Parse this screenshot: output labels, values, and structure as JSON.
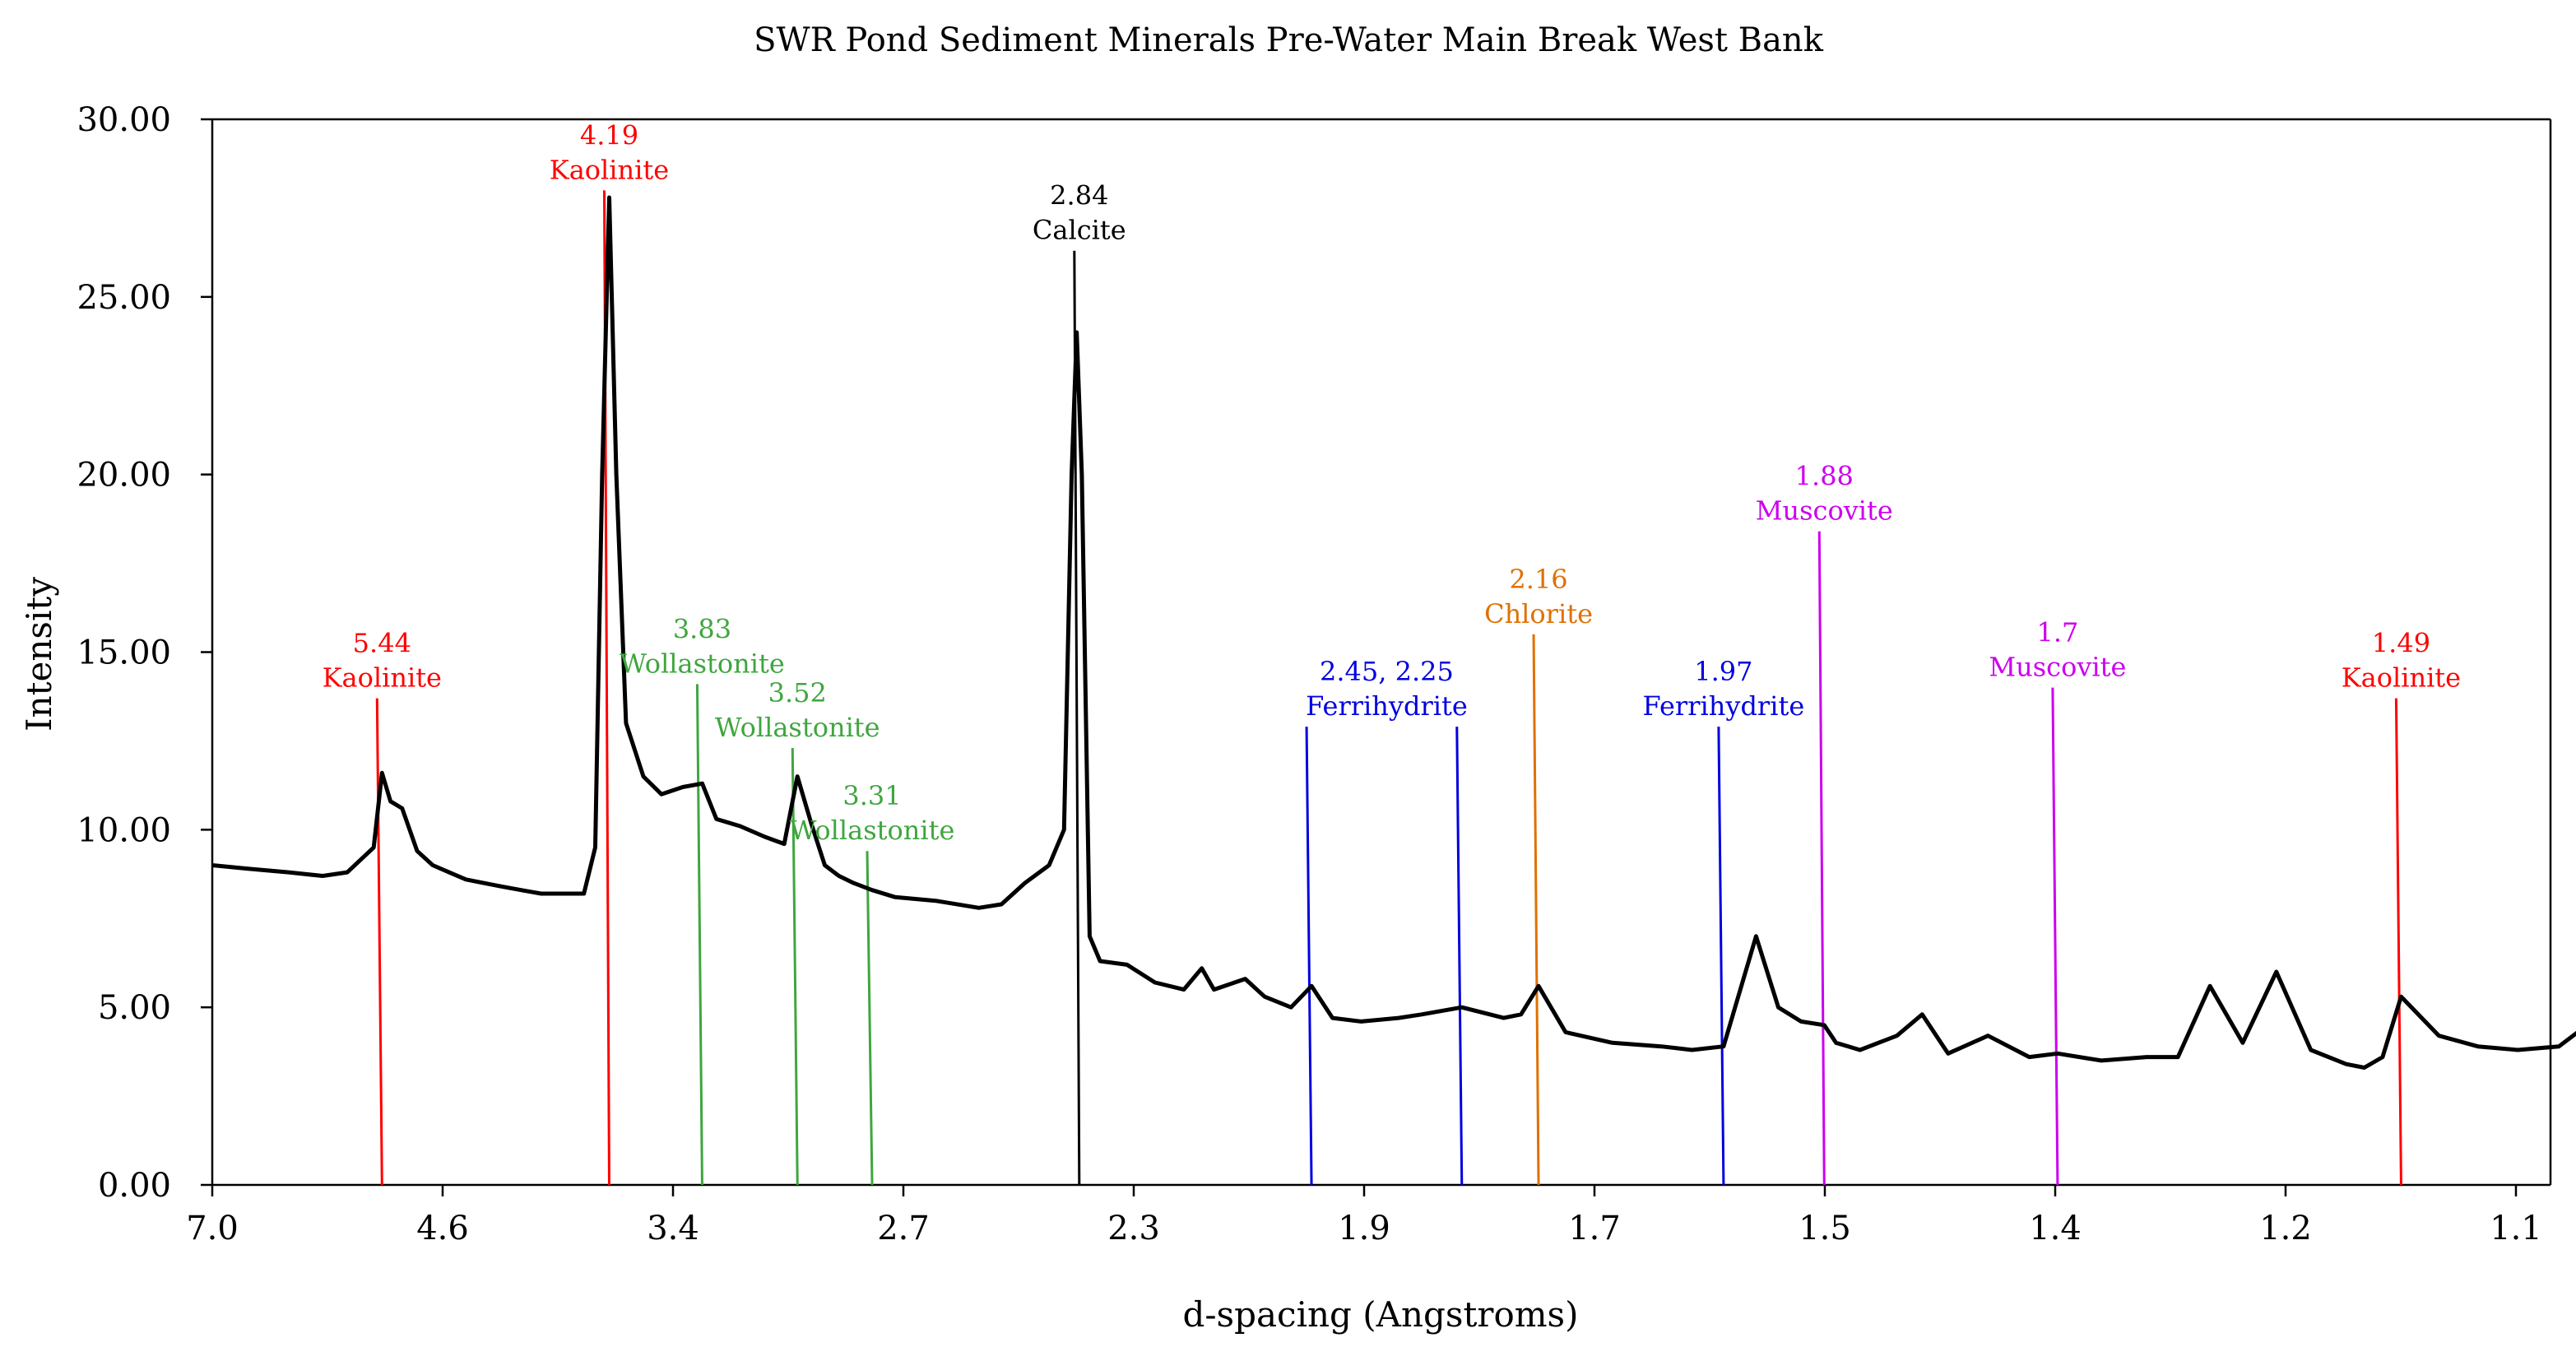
{
  "chart_data": {
    "type": "line",
    "title": "SWR Pond Sediment Minerals Pre-Water Main Break West Bank",
    "xlabel": "d-spacing (Angstroms)",
    "ylabel": "Intensity",
    "ylim": [
      0,
      30
    ],
    "yticks": [
      "0.00",
      "5.00",
      "10.00",
      "15.00",
      "20.00",
      "25.00",
      "30.00"
    ],
    "xticks": [
      "7.0",
      "4.6",
      "3.4",
      "2.7",
      "2.3",
      "1.9",
      "1.7",
      "1.5",
      "1.4",
      "1.2",
      "1.1"
    ],
    "grid": false,
    "legend": "none",
    "line_color": "#000000",
    "series": [
      {
        "values": [
          [
            7.0,
            9.0
          ],
          [
            6.6,
            8.9
          ],
          [
            6.2,
            8.8
          ],
          [
            5.9,
            8.7
          ],
          [
            5.7,
            8.8
          ],
          [
            5.5,
            9.5
          ],
          [
            5.44,
            11.6
          ],
          [
            5.38,
            10.8
          ],
          [
            5.3,
            10.6
          ],
          [
            5.2,
            9.4
          ],
          [
            5.1,
            9.0
          ],
          [
            5.0,
            8.8
          ],
          [
            4.9,
            8.6
          ],
          [
            4.8,
            8.5
          ],
          [
            4.7,
            8.4
          ],
          [
            4.6,
            8.3
          ],
          [
            4.5,
            8.2
          ],
          [
            4.4,
            8.2
          ],
          [
            4.3,
            8.2
          ],
          [
            4.25,
            9.5
          ],
          [
            4.22,
            20.0
          ],
          [
            4.19,
            27.8
          ],
          [
            4.16,
            20.0
          ],
          [
            4.12,
            13.0
          ],
          [
            4.05,
            11.5
          ],
          [
            3.98,
            11.0
          ],
          [
            3.9,
            11.2
          ],
          [
            3.83,
            11.3
          ],
          [
            3.78,
            10.3
          ],
          [
            3.7,
            10.1
          ],
          [
            3.62,
            9.8
          ],
          [
            3.56,
            9.6
          ],
          [
            3.52,
            11.5
          ],
          [
            3.48,
            10.2
          ],
          [
            3.44,
            9.0
          ],
          [
            3.4,
            8.7
          ],
          [
            3.36,
            8.5
          ],
          [
            3.31,
            8.3
          ],
          [
            3.25,
            8.1
          ],
          [
            3.15,
            8.0
          ],
          [
            3.05,
            7.8
          ],
          [
            3.0,
            7.9
          ],
          [
            2.95,
            8.5
          ],
          [
            2.9,
            9.0
          ],
          [
            2.87,
            10.0
          ],
          [
            2.855,
            20.0
          ],
          [
            2.845,
            24.0
          ],
          [
            2.835,
            20.0
          ],
          [
            2.82,
            7.0
          ],
          [
            2.8,
            6.3
          ],
          [
            2.75,
            6.2
          ],
          [
            2.7,
            5.7
          ],
          [
            2.65,
            5.5
          ],
          [
            2.62,
            6.1
          ],
          [
            2.6,
            5.5
          ],
          [
            2.55,
            5.8
          ],
          [
            2.52,
            5.3
          ],
          [
            2.48,
            5.0
          ],
          [
            2.45,
            5.6
          ],
          [
            2.42,
            4.7
          ],
          [
            2.38,
            4.6
          ],
          [
            2.33,
            4.7
          ],
          [
            2.3,
            4.8
          ],
          [
            2.25,
            5.0
          ],
          [
            2.2,
            4.7
          ],
          [
            2.18,
            4.8
          ],
          [
            2.16,
            5.6
          ],
          [
            2.13,
            4.3
          ],
          [
            2.08,
            4.0
          ],
          [
            2.03,
            3.9
          ],
          [
            2.0,
            3.8
          ],
          [
            1.97,
            3.9
          ],
          [
            1.94,
            7.0
          ],
          [
            1.92,
            5.0
          ],
          [
            1.9,
            4.6
          ],
          [
            1.88,
            4.5
          ],
          [
            1.87,
            4.0
          ],
          [
            1.85,
            3.8
          ],
          [
            1.82,
            4.2
          ],
          [
            1.8,
            4.8
          ],
          [
            1.78,
            3.7
          ],
          [
            1.75,
            4.2
          ],
          [
            1.72,
            3.6
          ],
          [
            1.7,
            3.7
          ],
          [
            1.67,
            3.5
          ],
          [
            1.64,
            3.6
          ],
          [
            1.62,
            3.6
          ],
          [
            1.6,
            5.6
          ],
          [
            1.58,
            4.0
          ],
          [
            1.56,
            6.0
          ],
          [
            1.54,
            3.8
          ],
          [
            1.52,
            3.4
          ],
          [
            1.51,
            3.3
          ],
          [
            1.5,
            3.6
          ],
          [
            1.49,
            5.3
          ],
          [
            1.47,
            4.2
          ],
          [
            1.45,
            3.9
          ],
          [
            1.43,
            3.8
          ],
          [
            1.41,
            3.9
          ],
          [
            1.39,
            4.8
          ],
          [
            1.37,
            3.5
          ],
          [
            1.35,
            3.3
          ],
          [
            1.33,
            3.5
          ],
          [
            1.31,
            3.3
          ],
          [
            1.29,
            3.4
          ],
          [
            1.27,
            3.5
          ],
          [
            1.25,
            3.4
          ],
          [
            1.23,
            3.5
          ],
          [
            1.22,
            3.5
          ],
          [
            1.21,
            4.9
          ],
          [
            1.2,
            5.0
          ],
          [
            1.19,
            3.2
          ],
          [
            1.17,
            3.1
          ],
          [
            1.15,
            3.0
          ],
          [
            1.13,
            2.9
          ],
          [
            1.11,
            2.8
          ],
          [
            1.09,
            2.6
          ],
          [
            1.07,
            2.7
          ],
          [
            1.05,
            2.5
          ],
          [
            1.03,
            2.4
          ],
          [
            1.02,
            2.4
          ]
        ]
      }
    ],
    "annotations": [
      {
        "d": "5.44",
        "mineral": "Kaolinite",
        "color": "#ff0000",
        "top_y": 13.7
      },
      {
        "d": "4.19",
        "mineral": "Kaolinite",
        "color": "#ff0000",
        "top_y": 28.0
      },
      {
        "d": "3.83",
        "mineral": "Wollastonite",
        "color": "#3fa63f",
        "top_y": 14.1
      },
      {
        "d": "3.52",
        "mineral": "Wollastonite",
        "color": "#3fa63f",
        "top_y": 12.3
      },
      {
        "d": "3.31",
        "mineral": "Wollastonite",
        "color": "#3fa63f",
        "top_y": 9.4
      },
      {
        "d": "2.84",
        "mineral": "Calcite",
        "color": "#000000",
        "top_y": 26.3
      },
      {
        "d": "2.45, 2.25",
        "mineral": "Ferrihydrite",
        "color": "#0000e0",
        "top_y": 12.9
      },
      {
        "d": "2.16",
        "mineral": "Chlorite",
        "color": "#e07000",
        "top_y": 15.5
      },
      {
        "d": "1.97",
        "mineral": "Ferrihydrite",
        "color": "#0000e0",
        "top_y": 12.9
      },
      {
        "d": "1.88",
        "mineral": "Muscovite",
        "color": "#cc00ee",
        "top_y": 18.4
      },
      {
        "d": "1.7",
        "mineral": "Muscovite",
        "color": "#cc00ee",
        "top_y": 14.0
      },
      {
        "d": "1.49",
        "mineral": "Kaolinite",
        "color": "#ff0000",
        "top_y": 13.7
      }
    ]
  }
}
